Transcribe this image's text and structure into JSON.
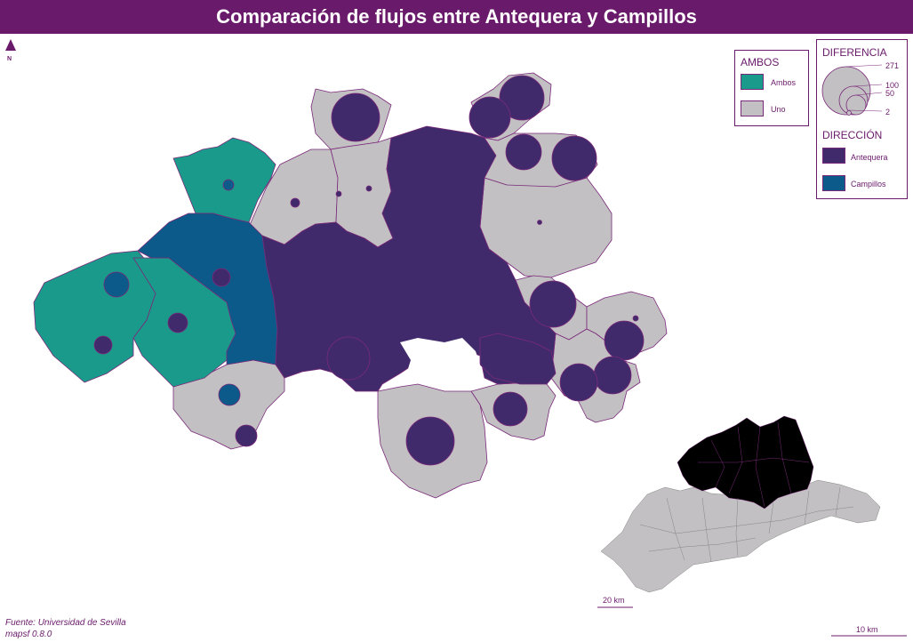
{
  "title": "Comparación de flujos entre Antequera y Campillos",
  "north": {
    "label": "N"
  },
  "legend_ambos": {
    "title": "AMBOS",
    "items": [
      {
        "label": "Ambos",
        "color": "#1a9a8a"
      },
      {
        "label": "Uno",
        "color": "#c2c0c2"
      }
    ]
  },
  "legend_diferencia": {
    "title": "DIFERENCIA",
    "values": [
      "271",
      "100",
      "50",
      "2"
    ]
  },
  "legend_direccion": {
    "title": "DIRECCIÓN",
    "items": [
      {
        "label": "Antequera",
        "color": "#412a6c"
      },
      {
        "label": "Campillos",
        "color": "#0c5a8a"
      }
    ]
  },
  "credits": {
    "source": "Fuente: Universidad de Sevilla",
    "software": "mapsf 0.8.0"
  },
  "inset_scale": "20 km",
  "main_scale": "10 km",
  "colors": {
    "title_bg": "#6a1a6a",
    "uno": "#c2c0c2",
    "ambos": "#1a9a8a",
    "antequera": "#412a6c",
    "campillos": "#0c5a8a",
    "border": "#7a2a7a"
  }
}
